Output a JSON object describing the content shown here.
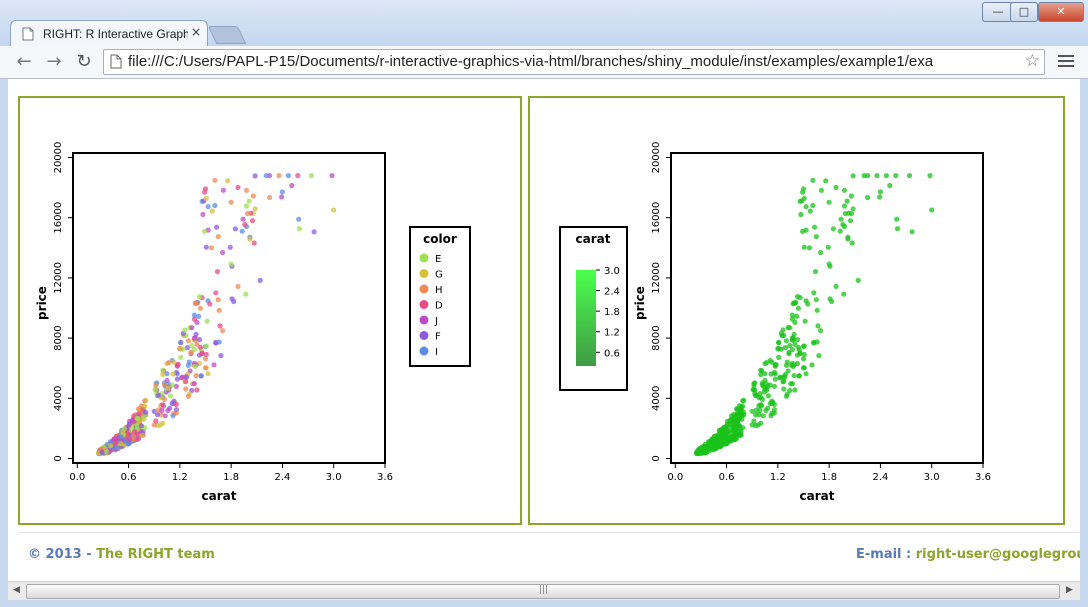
{
  "window": {
    "tab_title": "RIGHT: R Interactive Graphi",
    "tab_close": "×",
    "minimize": "—",
    "maximize": "□",
    "close": "✕"
  },
  "toolbar": {
    "back": "←",
    "forward": "→",
    "reload": "↻",
    "url": "file:///C:/Users/PAPL-P15/Documents/r-interactive-graphics-via-html/branches/shiny_module/inst/examples/example1/exa",
    "star": "☆"
  },
  "icons": {
    "favicon": "page-icon",
    "address_page": "page-icon",
    "menu": "hamburger-icon"
  },
  "colors": {
    "panel_border": "#8aa62c",
    "footer_blue": "#5a7bb2",
    "footer_green": "#8aa62c"
  },
  "footer": {
    "copyright_prefix": "© 2013 - ",
    "team": "The RIGHT team",
    "email_label": "E-mail : ",
    "email": "right-user@googlegroups.co"
  },
  "scrollbar": {
    "left": "◀",
    "right": "▶",
    "grip": "|||"
  },
  "chart_data": [
    {
      "type": "scatter",
      "xlabel": "carat",
      "ylabel": "price",
      "xlim": [
        -0.05,
        3.6
      ],
      "ylim": [
        -300,
        20300
      ],
      "xticks": [
        "0.0",
        "0.6",
        "1.2",
        "1.8",
        "2.4",
        "3.0",
        "3.6"
      ],
      "yticks": [
        "0",
        "4000",
        "8000",
        "12000",
        "16000",
        "20000"
      ],
      "legend": {
        "title": "color",
        "placement": "right",
        "entries": [
          {
            "label": "E",
            "color": "#9ee052"
          },
          {
            "label": "G",
            "color": "#d6c23a"
          },
          {
            "label": "H",
            "color": "#f08a52"
          },
          {
            "label": "D",
            "color": "#ea4b86"
          },
          {
            "label": "J",
            "color": "#bf4bc6"
          },
          {
            "label": "F",
            "color": "#8c5be0"
          },
          {
            "label": "I",
            "color": "#5b8de8"
          }
        ]
      },
      "points_seed": 7,
      "points_count": 520
    },
    {
      "type": "scatter",
      "xlabel": "carat",
      "ylabel": "price",
      "xlim": [
        -0.05,
        3.6
      ],
      "ylim": [
        -300,
        20300
      ],
      "xticks": [
        "0.0",
        "0.6",
        "1.2",
        "1.8",
        "2.4",
        "3.0",
        "3.6"
      ],
      "yticks": [
        "0",
        "4000",
        "8000",
        "12000",
        "16000",
        "20000"
      ],
      "legend": {
        "title": "carat",
        "placement": "right",
        "type": "gradient",
        "range": [
          0.2,
          3.0
        ],
        "labels": [
          "3.0",
          "2.4",
          "1.8",
          "1.2",
          "0.6"
        ],
        "color_low": "#3f9a46",
        "color_high": "#4cff4c"
      },
      "point_color": "#19c219",
      "points_seed": 7,
      "points_count": 520
    }
  ]
}
